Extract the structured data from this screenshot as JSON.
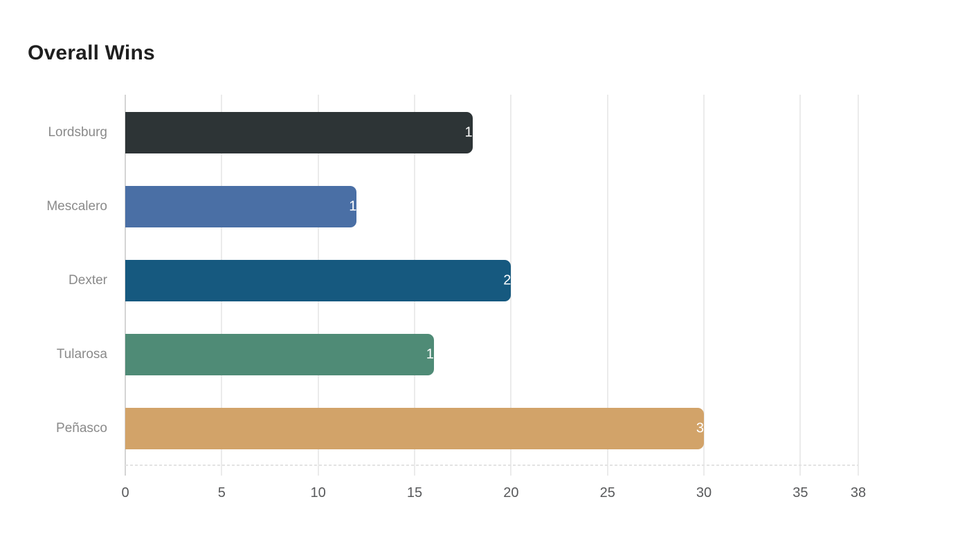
{
  "title": "Overall Wins",
  "chart_data": {
    "type": "bar",
    "orientation": "horizontal",
    "title": "Overall Wins",
    "categories": [
      "Lordsburg",
      "Mescalero",
      "Dexter",
      "Tularosa",
      "Peñasco"
    ],
    "values": [
      18,
      12,
      20,
      16,
      30
    ],
    "bar_colors": [
      "#2d3436",
      "#4a6fa5",
      "#16597f",
      "#4f8b76",
      "#d2a369"
    ],
    "value_label_color": "#ffffff",
    "xlabel": "",
    "ylabel": "",
    "xlim": [
      0,
      38
    ],
    "xticks": [
      0,
      5,
      10,
      15,
      20,
      25,
      30,
      35,
      38
    ],
    "grid": true,
    "legend": false,
    "title_color": "#1f1f1f",
    "axis": {
      "gridline_color": "#ebebeb",
      "axis_line_color": "#d4d4d4",
      "baseline_color": "#e3e3e3",
      "tick_label_color": "#58595b",
      "category_label_color": "#8a8a8a"
    }
  }
}
